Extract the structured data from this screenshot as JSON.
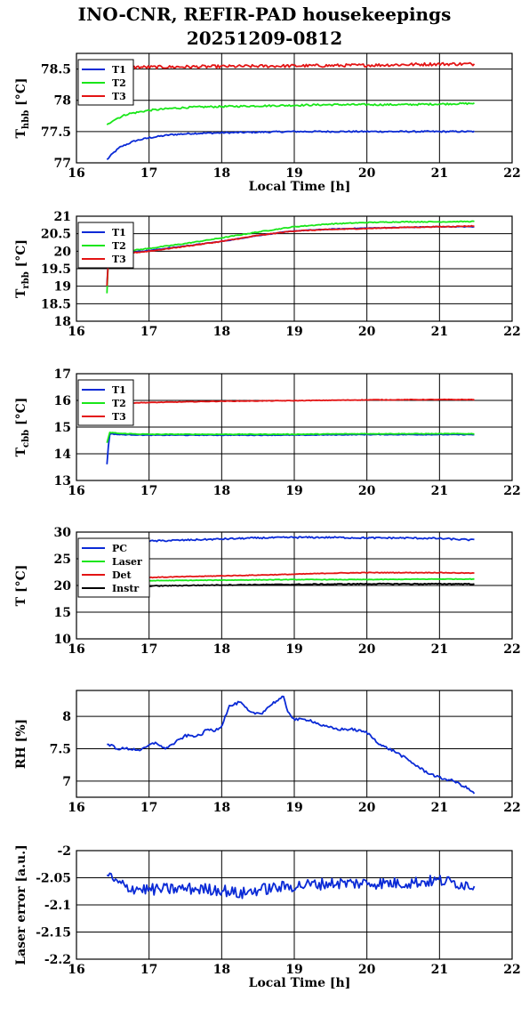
{
  "header": {
    "title_line1": "INO-CNR, REFIR-PAD housekeepings",
    "title_line2": "20251209-0812"
  },
  "colors": {
    "blue": "#0a2ad6",
    "green": "#19e619",
    "red": "#e31414",
    "black": "#000000"
  },
  "chart_data": [
    {
      "type": "line",
      "ylabel": "T_hbb [°C]",
      "ylabel_main": "T",
      "ylabel_sub": "hbb",
      "ylabel_unit": "[°C]",
      "xlabel": "Local Time [h]",
      "xlim": [
        16,
        22
      ],
      "ylim": [
        77,
        78.75
      ],
      "xticks": [
        16,
        17,
        18,
        19,
        20,
        21,
        22
      ],
      "yticks": [
        77,
        77.5,
        78,
        78.5
      ],
      "ytick_labels": [
        "77",
        "77.5",
        "78",
        "78.5"
      ],
      "grid": true,
      "legend": "top-left",
      "series": [
        {
          "name": "T1",
          "color": "#0a2ad6",
          "noise": 0.012,
          "x": [
            16.42,
            16.5,
            16.6,
            16.8,
            17.0,
            17.3,
            17.6,
            18.0,
            18.5,
            19.0,
            19.5,
            20.0,
            20.5,
            21.0,
            21.48
          ],
          "y": [
            77.05,
            77.15,
            77.25,
            77.35,
            77.4,
            77.45,
            77.47,
            77.48,
            77.49,
            77.5,
            77.5,
            77.5,
            77.5,
            77.5,
            77.5
          ]
        },
        {
          "name": "T2",
          "color": "#19e619",
          "noise": 0.014,
          "x": [
            16.42,
            16.5,
            16.7,
            17.0,
            17.3,
            17.6,
            18.0,
            18.5,
            19.0,
            19.5,
            20.0,
            20.5,
            21.0,
            21.48
          ],
          "y": [
            77.6,
            77.68,
            77.78,
            77.84,
            77.87,
            77.89,
            77.9,
            77.91,
            77.92,
            77.93,
            77.93,
            77.93,
            77.94,
            77.95
          ]
        },
        {
          "name": "T3",
          "color": "#e31414",
          "noise": 0.025,
          "x": [
            16.42,
            17.0,
            18.0,
            19.0,
            20.0,
            21.0,
            21.48
          ],
          "y": [
            78.53,
            78.53,
            78.54,
            78.55,
            78.56,
            78.58,
            78.58
          ]
        }
      ]
    },
    {
      "type": "line",
      "ylabel": "T_rbb [°C]",
      "ylabel_main": "T",
      "ylabel_sub": "rbb",
      "ylabel_unit": "[°C]",
      "xlabel": "",
      "xlim": [
        16,
        22
      ],
      "ylim": [
        18,
        21
      ],
      "xticks": [
        16,
        17,
        18,
        19,
        20,
        21,
        22
      ],
      "yticks": [
        18,
        18.5,
        19,
        19.5,
        20,
        20.5,
        21
      ],
      "ytick_labels": [
        "18",
        "18.5",
        "19",
        "19.5",
        "20",
        "20.5",
        "21"
      ],
      "grid": true,
      "legend": "top-left",
      "series": [
        {
          "name": "T1",
          "color": "#0a2ad6",
          "noise": 0.01,
          "x": [
            16.42,
            16.43,
            16.45,
            16.6,
            17.0,
            17.5,
            18.0,
            18.5,
            19.0,
            19.5,
            20.0,
            20.5,
            21.0,
            21.48
          ],
          "y": [
            19.05,
            19.7,
            19.9,
            19.95,
            20.02,
            20.15,
            20.28,
            20.45,
            20.58,
            20.63,
            20.66,
            20.68,
            20.7,
            20.7
          ]
        },
        {
          "name": "T2",
          "color": "#19e619",
          "noise": 0.012,
          "x": [
            16.42,
            16.43,
            16.45,
            16.6,
            17.0,
            17.5,
            18.0,
            18.5,
            19.0,
            19.5,
            20.0,
            20.5,
            21.0,
            21.48
          ],
          "y": [
            18.8,
            19.7,
            19.92,
            19.98,
            20.08,
            20.22,
            20.38,
            20.55,
            20.7,
            20.78,
            20.82,
            20.84,
            20.84,
            20.85
          ]
        },
        {
          "name": "T3",
          "color": "#e31414",
          "noise": 0.012,
          "x": [
            16.42,
            16.43,
            16.45,
            16.6,
            17.0,
            17.5,
            18.0,
            18.5,
            19.0,
            19.5,
            20.0,
            20.5,
            21.0,
            21.48
          ],
          "y": [
            19.0,
            19.6,
            19.88,
            19.92,
            20.0,
            20.14,
            20.28,
            20.45,
            20.58,
            20.62,
            20.65,
            20.68,
            20.7,
            20.72
          ]
        }
      ]
    },
    {
      "type": "line",
      "ylabel": "T_cbb [°C]",
      "ylabel_main": "T",
      "ylabel_sub": "cbb",
      "ylabel_unit": "[°C]",
      "xlabel": "",
      "xlim": [
        16,
        22
      ],
      "ylim": [
        13,
        17
      ],
      "xticks": [
        16,
        17,
        18,
        19,
        20,
        21,
        22
      ],
      "yticks": [
        13,
        14,
        15,
        16,
        17
      ],
      "ytick_labels": [
        "13",
        "14",
        "15",
        "16",
        "17"
      ],
      "grid": true,
      "legend": "top-left",
      "series": [
        {
          "name": "T1",
          "color": "#0a2ad6",
          "noise": 0.012,
          "x": [
            16.42,
            16.44,
            16.46,
            16.6,
            17.0,
            18.0,
            19.0,
            20.0,
            21.0,
            21.48
          ],
          "y": [
            13.6,
            14.3,
            14.75,
            14.72,
            14.7,
            14.7,
            14.7,
            14.72,
            14.72,
            14.72
          ]
        },
        {
          "name": "T2",
          "color": "#19e619",
          "noise": 0.012,
          "x": [
            16.42,
            16.44,
            16.46,
            16.6,
            17.0,
            18.0,
            19.0,
            20.0,
            21.0,
            21.48
          ],
          "y": [
            14.4,
            14.6,
            14.8,
            14.76,
            14.73,
            14.73,
            14.73,
            14.75,
            14.75,
            14.75
          ]
        },
        {
          "name": "T3",
          "color": "#e31414",
          "noise": 0.01,
          "x": [
            16.6,
            17.0,
            18.0,
            19.0,
            20.0,
            21.0,
            21.48
          ],
          "y": [
            15.9,
            15.92,
            15.97,
            15.99,
            16.02,
            16.03,
            16.03
          ]
        }
      ]
    },
    {
      "type": "line",
      "ylabel": "T [°C]",
      "ylabel_main": "T [°C]",
      "ylabel_sub": "",
      "ylabel_unit": "",
      "xlabel": "",
      "xlim": [
        16,
        22
      ],
      "ylim": [
        10,
        30
      ],
      "xticks": [
        16,
        17,
        18,
        19,
        20,
        21,
        22
      ],
      "yticks": [
        10,
        15,
        20,
        25,
        30
      ],
      "ytick_labels": [
        "10",
        "15",
        "20",
        "25",
        "30"
      ],
      "grid": true,
      "legend": "top-left",
      "series": [
        {
          "name": "PC",
          "color": "#0a2ad6",
          "noise": 0.15,
          "x": [
            16.42,
            17.0,
            17.5,
            18.0,
            18.5,
            19.0,
            19.5,
            20.0,
            20.5,
            21.0,
            21.48
          ],
          "y": [
            28.2,
            28.3,
            28.5,
            28.7,
            28.9,
            29.0,
            29.0,
            28.9,
            28.9,
            28.8,
            28.5
          ]
        },
        {
          "name": "Laser",
          "color": "#19e619",
          "noise": 0.05,
          "x": [
            16.42,
            17.0,
            18.0,
            19.0,
            20.0,
            21.0,
            21.48
          ],
          "y": [
            20.8,
            20.9,
            21.0,
            21.1,
            21.1,
            21.2,
            21.2
          ]
        },
        {
          "name": "Det",
          "color": "#e31414",
          "noise": 0.06,
          "x": [
            16.42,
            17.0,
            18.0,
            19.0,
            19.5,
            20.0,
            21.0,
            21.48
          ],
          "y": [
            21.3,
            21.5,
            21.8,
            22.1,
            22.3,
            22.4,
            22.4,
            22.3
          ]
        },
        {
          "name": "Instr",
          "color": "#000000",
          "noise": 0.08,
          "x": [
            16.42,
            17.0,
            18.0,
            19.0,
            20.0,
            21.0,
            21.48
          ],
          "y": [
            19.8,
            19.9,
            20.1,
            20.2,
            20.3,
            20.3,
            20.3
          ]
        }
      ]
    },
    {
      "type": "line",
      "ylabel": "RH [%]",
      "ylabel_main": "RH [%]",
      "ylabel_sub": "",
      "ylabel_unit": "",
      "xlabel": "",
      "xlim": [
        16,
        22
      ],
      "ylim": [
        6.75,
        8.4
      ],
      "xticks": [
        16,
        17,
        18,
        19,
        20,
        21,
        22
      ],
      "yticks": [
        7,
        7.5,
        8
      ],
      "ytick_labels": [
        "7",
        "7.5",
        "8"
      ],
      "grid": true,
      "legend": "none",
      "series": [
        {
          "name": "",
          "color": "#0a2ad6",
          "noise": 0.02,
          "x": [
            16.42,
            16.5,
            16.55,
            16.7,
            16.9,
            17.0,
            17.1,
            17.2,
            17.3,
            17.5,
            17.7,
            17.8,
            17.9,
            18.0,
            18.1,
            18.25,
            18.4,
            18.55,
            18.7,
            18.85,
            18.9,
            19.0,
            19.2,
            19.4,
            19.6,
            19.8,
            20.0,
            20.2,
            20.4,
            20.6,
            20.8,
            21.0,
            21.2,
            21.4,
            21.48
          ],
          "y": [
            7.55,
            7.55,
            7.5,
            7.5,
            7.48,
            7.55,
            7.6,
            7.5,
            7.55,
            7.7,
            7.7,
            7.8,
            7.78,
            7.85,
            8.15,
            8.22,
            8.05,
            8.05,
            8.2,
            8.3,
            8.1,
            7.95,
            7.95,
            7.85,
            7.8,
            7.8,
            7.75,
            7.55,
            7.45,
            7.3,
            7.15,
            7.05,
            7.0,
            6.88,
            6.8
          ]
        }
      ]
    },
    {
      "type": "line",
      "ylabel": "Laser error [a.u.]",
      "ylabel_main": "Laser error [a.u.]",
      "ylabel_sub": "",
      "ylabel_unit": "",
      "xlabel": "Local Time [h]",
      "xlim": [
        16,
        22
      ],
      "ylim": [
        -2.2,
        -2.0
      ],
      "xticks": [
        16,
        17,
        18,
        19,
        20,
        21,
        22
      ],
      "yticks": [
        -2.2,
        -2.15,
        -2.1,
        -2.05,
        -2.0
      ],
      "ytick_labels": [
        "-2.2",
        "-2.15",
        "-2.1",
        "-2.05",
        "-2"
      ],
      "grid": true,
      "legend": "none",
      "series": [
        {
          "name": "",
          "color": "#0a2ad6",
          "noise": 0.011,
          "x": [
            16.42,
            16.5,
            16.7,
            17.0,
            17.5,
            18.0,
            18.25,
            18.5,
            19.0,
            19.5,
            20.0,
            20.5,
            21.0,
            21.48
          ],
          "y": [
            -2.04,
            -2.055,
            -2.068,
            -2.072,
            -2.07,
            -2.072,
            -2.08,
            -2.072,
            -2.065,
            -2.06,
            -2.06,
            -2.06,
            -2.055,
            -2.065
          ]
        }
      ]
    }
  ]
}
